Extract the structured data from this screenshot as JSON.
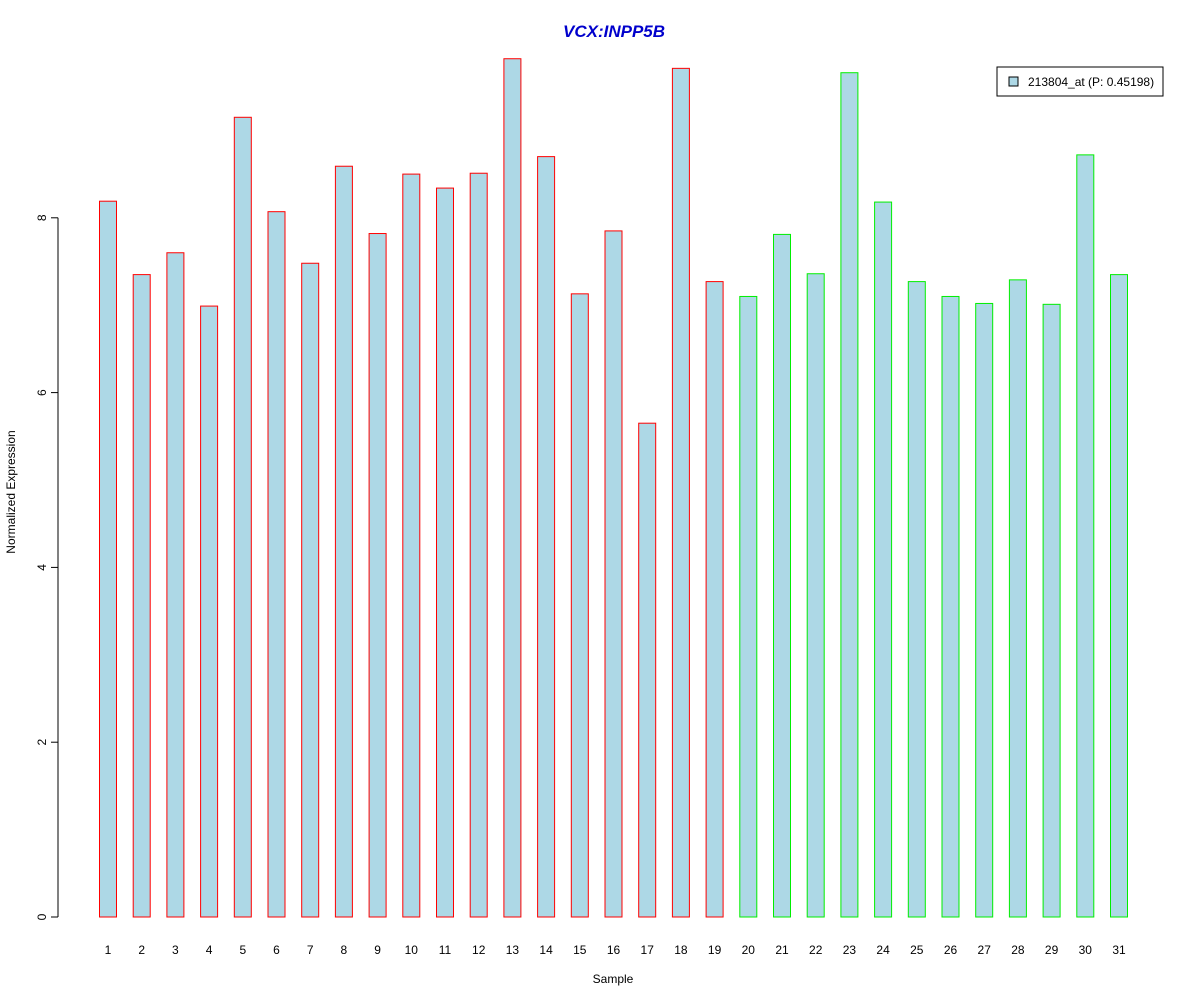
{
  "chart_data": {
    "type": "bar",
    "title": "VCX:INPP5B",
    "xlabel": "Sample",
    "ylabel": "Normalized Expression",
    "categories": [
      "1",
      "2",
      "3",
      "4",
      "5",
      "6",
      "7",
      "8",
      "9",
      "10",
      "11",
      "12",
      "13",
      "14",
      "15",
      "16",
      "17",
      "18",
      "19",
      "20",
      "21",
      "22",
      "23",
      "24",
      "25",
      "26",
      "27",
      "28",
      "29",
      "30",
      "31"
    ],
    "values": [
      8.19,
      7.35,
      7.6,
      6.99,
      9.15,
      8.07,
      7.48,
      8.59,
      7.82,
      8.5,
      8.34,
      8.51,
      9.82,
      8.7,
      7.13,
      7.85,
      5.65,
      9.71,
      7.27,
      7.1,
      7.81,
      7.36,
      9.66,
      8.18,
      7.27,
      7.1,
      7.02,
      7.29,
      7.01,
      8.72,
      7.35
    ],
    "groups": [
      1,
      1,
      1,
      1,
      1,
      1,
      1,
      1,
      1,
      1,
      1,
      1,
      1,
      1,
      1,
      1,
      1,
      1,
      1,
      2,
      2,
      2,
      2,
      2,
      2,
      2,
      2,
      2,
      2,
      2,
      2
    ],
    "yticks": [
      0,
      2,
      4,
      6,
      8
    ],
    "ylim": [
      0,
      10
    ],
    "grid": false,
    "legend": {
      "label": "213804_at (P: 0.45198)",
      "placement": "top-right"
    },
    "colors": {
      "title": "#0000cc",
      "bar_fill": "#add8e6",
      "group_1_border": "#ff0000",
      "group_2_border": "#00ee00",
      "legend_border": "#000000"
    }
  }
}
